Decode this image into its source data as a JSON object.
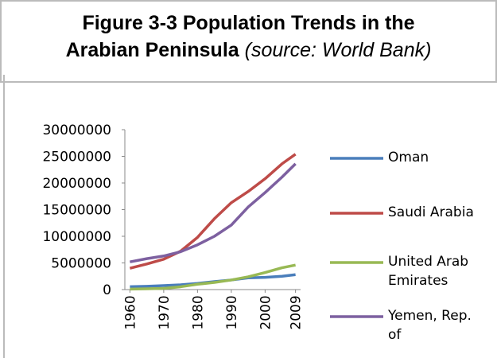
{
  "chart_data": {
    "type": "line",
    "title": [
      "Figure 3-3 Population Trends in the",
      "Arabian Peninsula"
    ],
    "source": "(source: World Bank)",
    "x": [
      1960,
      1965,
      1970,
      1975,
      1980,
      1985,
      1990,
      1995,
      2000,
      2005,
      2009
    ],
    "xlim": [
      1958.5,
      2010.5
    ],
    "xticks": [
      1960,
      1970,
      1980,
      1990,
      2000,
      2009
    ],
    "ylim": [
      0,
      30000000
    ],
    "yticks": [
      0,
      5000000,
      10000000,
      15000000,
      20000000,
      25000000,
      30000000
    ],
    "legend": "right",
    "series": [
      {
        "name": "Oman",
        "color": "#4a7ebb",
        "values": [
          550000,
          620000,
          750000,
          900000,
          1150000,
          1500000,
          1800000,
          2200000,
          2300000,
          2500000,
          2800000
        ]
      },
      {
        "name": "Saudi Arabia",
        "color": "#be4b48",
        "values": [
          4000000,
          4800000,
          5700000,
          7200000,
          9800000,
          13300000,
          16300000,
          18400000,
          20800000,
          23600000,
          25400000
        ]
      },
      {
        "name": "United Arab Emirates",
        "color": "#98b954",
        "values": [
          90000,
          150000,
          230000,
          530000,
          1000000,
          1350000,
          1800000,
          2400000,
          3200000,
          4100000,
          4600000
        ]
      },
      {
        "name": "Yemen, Rep. of",
        "color": "#7d60a0",
        "values": [
          5200000,
          5800000,
          6300000,
          7100000,
          8400000,
          10000000,
          12100000,
          15500000,
          18200000,
          21100000,
          23600000
        ]
      }
    ]
  }
}
